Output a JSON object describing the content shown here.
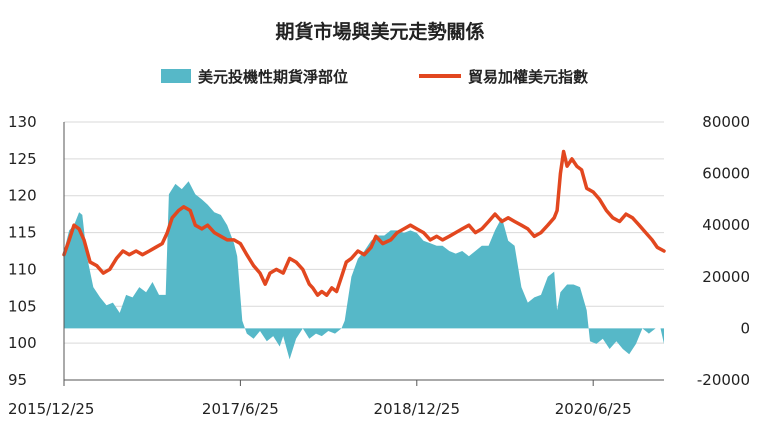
{
  "chart_data": {
    "type": "line+area",
    "title": "期貨市場與美元走勢關係",
    "legend": [
      {
        "name": "美元投機性期貨淨部位",
        "color": "#56b8c8",
        "kind": "area"
      },
      {
        "name": "貿易加權美元指數",
        "color": "#e2471f",
        "kind": "line"
      }
    ],
    "x_range": [
      "2015/12/25",
      "2021/01/31"
    ],
    "x_ticks": [
      "2015/12/25",
      "2017/6/25",
      "2018/12/25",
      "2020/6/25"
    ],
    "y_left": {
      "min": 95,
      "max": 130,
      "ticks": [
        "95",
        "100",
        "105",
        "110",
        "115",
        "120",
        "125",
        "130"
      ]
    },
    "y_right": {
      "min": -20000,
      "max": 80000,
      "ticks": [
        "-20000",
        "0",
        "20000",
        "40000",
        "60000",
        "80000"
      ]
    },
    "series": [
      {
        "name": "美元投機性期貨淨部位",
        "axis": "right",
        "points": [
          [
            "2015-12-25",
            30000
          ],
          [
            "2016-01-10",
            38000
          ],
          [
            "2016-01-25",
            40000
          ],
          [
            "2016-02-10",
            45000
          ],
          [
            "2016-02-20",
            44000
          ],
          [
            "2016-03-05",
            28000
          ],
          [
            "2016-03-25",
            16000
          ],
          [
            "2016-04-15",
            12000
          ],
          [
            "2016-05-05",
            9000
          ],
          [
            "2016-05-25",
            10000
          ],
          [
            "2016-06-15",
            6000
          ],
          [
            "2016-07-05",
            13000
          ],
          [
            "2016-07-25",
            12000
          ],
          [
            "2016-08-15",
            16000
          ],
          [
            "2016-09-05",
            14000
          ],
          [
            "2016-09-25",
            18000
          ],
          [
            "2016-10-15",
            13000
          ],
          [
            "2016-11-05",
            13000
          ],
          [
            "2016-11-15",
            52000
          ],
          [
            "2016-12-05",
            56000
          ],
          [
            "2016-12-25",
            54000
          ],
          [
            "2017-01-15",
            57000
          ],
          [
            "2017-02-05",
            52000
          ],
          [
            "2017-02-25",
            50000
          ],
          [
            "2017-03-15",
            48000
          ],
          [
            "2017-04-05",
            45000
          ],
          [
            "2017-04-25",
            44000
          ],
          [
            "2017-05-15",
            40000
          ],
          [
            "2017-06-05",
            33000
          ],
          [
            "2017-06-15",
            28000
          ],
          [
            "2017-07-01",
            3000
          ],
          [
            "2017-07-15",
            -2000
          ],
          [
            "2017-08-05",
            -4000
          ],
          [
            "2017-08-25",
            -1000
          ],
          [
            "2017-09-15",
            -5000
          ],
          [
            "2017-10-05",
            -3000
          ],
          [
            "2017-10-25",
            -7000
          ],
          [
            "2017-11-05",
            -3000
          ],
          [
            "2017-11-25",
            -12000
          ],
          [
            "2017-12-15",
            -4000
          ],
          [
            "2018-01-05",
            0
          ],
          [
            "2018-01-25",
            -4000
          ],
          [
            "2018-02-15",
            -2000
          ],
          [
            "2018-03-05",
            -3000
          ],
          [
            "2018-03-25",
            -1000
          ],
          [
            "2018-04-15",
            -2000
          ],
          [
            "2018-05-05",
            0
          ],
          [
            "2018-05-15",
            3000
          ],
          [
            "2018-06-05",
            20000
          ],
          [
            "2018-06-25",
            27000
          ],
          [
            "2018-07-15",
            30000
          ],
          [
            "2018-08-05",
            34000
          ],
          [
            "2018-08-25",
            36000
          ],
          [
            "2018-09-15",
            36000
          ],
          [
            "2018-10-05",
            38000
          ],
          [
            "2018-10-25",
            38000
          ],
          [
            "2018-11-15",
            37000
          ],
          [
            "2018-12-05",
            38000
          ],
          [
            "2018-12-25",
            37000
          ],
          [
            "2019-01-15",
            34000
          ],
          [
            "2019-02-05",
            33000
          ],
          [
            "2019-02-25",
            32000
          ],
          [
            "2019-03-15",
            32000
          ],
          [
            "2019-04-05",
            30000
          ],
          [
            "2019-04-25",
            29000
          ],
          [
            "2019-05-15",
            30000
          ],
          [
            "2019-06-05",
            28000
          ],
          [
            "2019-06-25",
            30000
          ],
          [
            "2019-07-15",
            32000
          ],
          [
            "2019-08-05",
            32000
          ],
          [
            "2019-08-25",
            38000
          ],
          [
            "2019-09-15",
            43000
          ],
          [
            "2019-10-05",
            34000
          ],
          [
            "2019-10-25",
            32000
          ],
          [
            "2019-11-15",
            16000
          ],
          [
            "2019-12-05",
            10000
          ],
          [
            "2019-12-25",
            12000
          ],
          [
            "2020-01-15",
            13000
          ],
          [
            "2020-02-05",
            20000
          ],
          [
            "2020-02-25",
            22000
          ],
          [
            "2020-03-05",
            7000
          ],
          [
            "2020-03-15",
            14000
          ],
          [
            "2020-04-05",
            17000
          ],
          [
            "2020-04-25",
            17000
          ],
          [
            "2020-05-15",
            16000
          ],
          [
            "2020-06-05",
            7000
          ],
          [
            "2020-06-15",
            -5000
          ],
          [
            "2020-07-05",
            -6000
          ],
          [
            "2020-07-25",
            -4000
          ],
          [
            "2020-08-15",
            -8000
          ],
          [
            "2020-09-05",
            -5000
          ],
          [
            "2020-09-25",
            -8000
          ],
          [
            "2020-10-15",
            -10000
          ],
          [
            "2020-11-05",
            -6000
          ],
          [
            "2020-11-25",
            0
          ],
          [
            "2020-12-15",
            -2000
          ],
          [
            "2021-01-05",
            0
          ],
          [
            "2021-01-20",
            0
          ],
          [
            "2021-01-31",
            -6000
          ]
        ]
      },
      {
        "name": "貿易加權美元指數",
        "axis": "left",
        "points": [
          [
            "2015-12-25",
            112.0
          ],
          [
            "2016-01-10",
            114.0
          ],
          [
            "2016-01-25",
            116.0
          ],
          [
            "2016-02-10",
            115.5
          ],
          [
            "2016-02-25",
            114.0
          ],
          [
            "2016-03-15",
            111.0
          ],
          [
            "2016-04-05",
            110.5
          ],
          [
            "2016-04-25",
            109.5
          ],
          [
            "2016-05-15",
            110.0
          ],
          [
            "2016-06-05",
            111.5
          ],
          [
            "2016-06-25",
            112.5
          ],
          [
            "2016-07-15",
            112.0
          ],
          [
            "2016-08-05",
            112.5
          ],
          [
            "2016-08-25",
            112.0
          ],
          [
            "2016-09-15",
            112.5
          ],
          [
            "2016-10-05",
            113.0
          ],
          [
            "2016-10-25",
            113.5
          ],
          [
            "2016-11-10",
            115.0
          ],
          [
            "2016-11-25",
            117.0
          ],
          [
            "2016-12-15",
            118.0
          ],
          [
            "2016-12-31",
            118.5
          ],
          [
            "2017-01-20",
            118.0
          ],
          [
            "2017-02-05",
            116.0
          ],
          [
            "2017-02-25",
            115.5
          ],
          [
            "2017-03-15",
            116.0
          ],
          [
            "2017-04-05",
            115.0
          ],
          [
            "2017-04-25",
            114.5
          ],
          [
            "2017-05-15",
            114.0
          ],
          [
            "2017-06-05",
            114.0
          ],
          [
            "2017-06-25",
            113.5
          ],
          [
            "2017-07-15",
            112.0
          ],
          [
            "2017-08-05",
            110.5
          ],
          [
            "2017-08-25",
            109.5
          ],
          [
            "2017-09-10",
            108.0
          ],
          [
            "2017-09-25",
            109.5
          ],
          [
            "2017-10-15",
            110.0
          ],
          [
            "2017-11-05",
            109.5
          ],
          [
            "2017-11-25",
            111.5
          ],
          [
            "2017-12-15",
            111.0
          ],
          [
            "2018-01-05",
            110.0
          ],
          [
            "2018-01-25",
            108.0
          ],
          [
            "2018-02-05",
            107.5
          ],
          [
            "2018-02-20",
            106.5
          ],
          [
            "2018-03-05",
            107.0
          ],
          [
            "2018-03-20",
            106.5
          ],
          [
            "2018-04-05",
            107.5
          ],
          [
            "2018-04-20",
            107.0
          ],
          [
            "2018-05-05",
            109.0
          ],
          [
            "2018-05-20",
            111.0
          ],
          [
            "2018-06-05",
            111.5
          ],
          [
            "2018-06-25",
            112.5
          ],
          [
            "2018-07-15",
            112.0
          ],
          [
            "2018-08-05",
            113.0
          ],
          [
            "2018-08-20",
            114.5
          ],
          [
            "2018-09-10",
            113.5
          ],
          [
            "2018-10-05",
            114.0
          ],
          [
            "2018-10-25",
            115.0
          ],
          [
            "2018-11-15",
            115.5
          ],
          [
            "2018-12-05",
            116.0
          ],
          [
            "2018-12-25",
            115.5
          ],
          [
            "2019-01-15",
            115.0
          ],
          [
            "2019-02-05",
            114.0
          ],
          [
            "2019-02-25",
            114.5
          ],
          [
            "2019-03-15",
            114.0
          ],
          [
            "2019-04-05",
            114.5
          ],
          [
            "2019-04-25",
            115.0
          ],
          [
            "2019-05-15",
            115.5
          ],
          [
            "2019-06-05",
            116.0
          ],
          [
            "2019-06-25",
            115.0
          ],
          [
            "2019-07-15",
            115.5
          ],
          [
            "2019-08-05",
            116.5
          ],
          [
            "2019-08-25",
            117.5
          ],
          [
            "2019-09-15",
            116.5
          ],
          [
            "2019-10-05",
            117.0
          ],
          [
            "2019-10-25",
            116.5
          ],
          [
            "2019-11-15",
            116.0
          ],
          [
            "2019-12-05",
            115.5
          ],
          [
            "2019-12-25",
            114.5
          ],
          [
            "2020-01-15",
            115.0
          ],
          [
            "2020-02-05",
            116.0
          ],
          [
            "2020-02-25",
            117.0
          ],
          [
            "2020-03-05",
            118.0
          ],
          [
            "2020-03-15",
            123.0
          ],
          [
            "2020-03-25",
            126.0
          ],
          [
            "2020-04-05",
            124.0
          ],
          [
            "2020-04-20",
            125.0
          ],
          [
            "2020-05-05",
            124.0
          ],
          [
            "2020-05-20",
            123.5
          ],
          [
            "2020-06-05",
            121.0
          ],
          [
            "2020-06-25",
            120.5
          ],
          [
            "2020-07-15",
            119.5
          ],
          [
            "2020-08-05",
            118.0
          ],
          [
            "2020-08-25",
            117.0
          ],
          [
            "2020-09-15",
            116.5
          ],
          [
            "2020-10-05",
            117.5
          ],
          [
            "2020-10-25",
            117.0
          ],
          [
            "2020-11-15",
            116.0
          ],
          [
            "2020-12-05",
            115.0
          ],
          [
            "2020-12-25",
            114.0
          ],
          [
            "2021-01-10",
            113.0
          ],
          [
            "2021-01-31",
            112.5
          ]
        ]
      }
    ]
  }
}
